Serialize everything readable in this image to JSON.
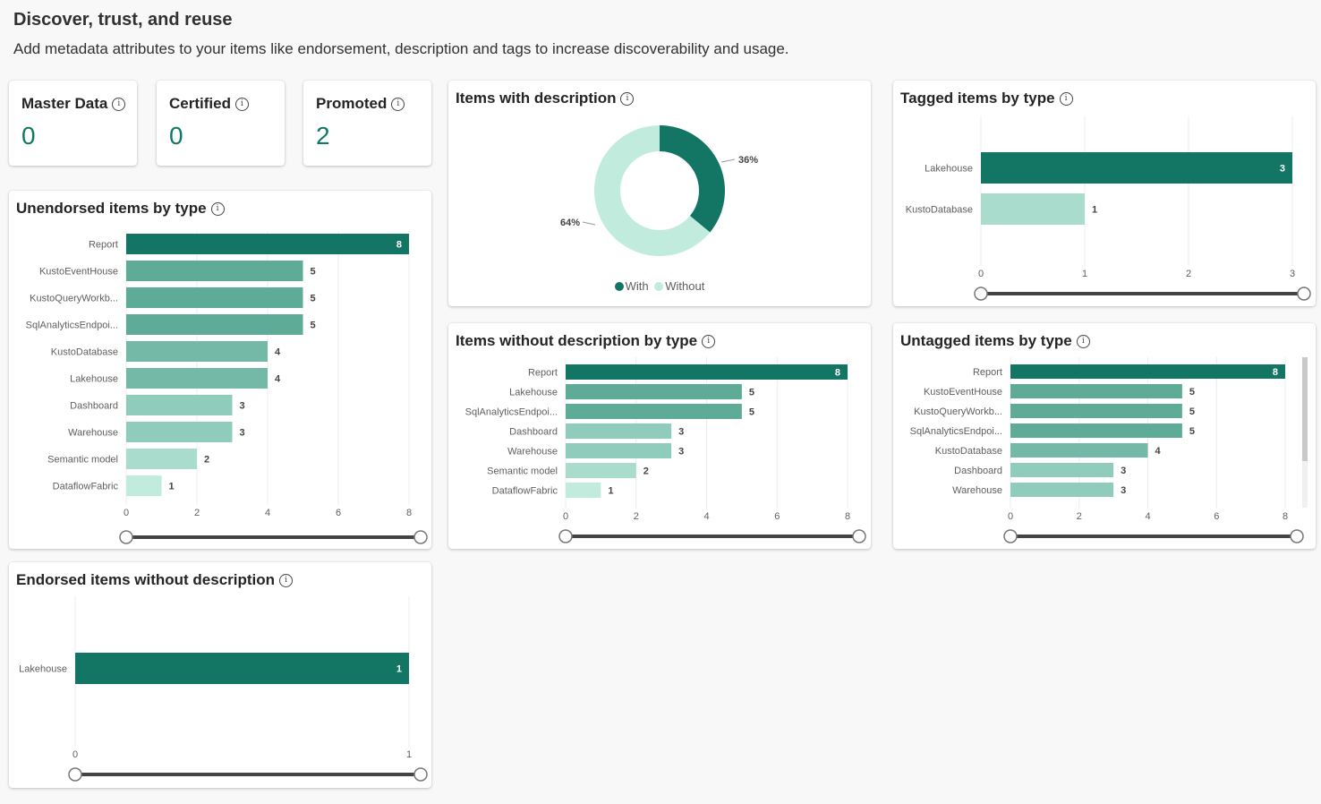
{
  "header": {
    "title": "Discover, trust, and reuse",
    "subtitle": "Add metadata attributes to your items like endorsement, description and tags to increase discoverability and usage."
  },
  "kpis": [
    {
      "label": "Master Data",
      "value": "0"
    },
    {
      "label": "Certified",
      "value": "0"
    },
    {
      "label": "Promoted",
      "value": "2"
    }
  ],
  "colors": {
    "dark": "#137665",
    "mid": "#5eab98",
    "mid2": "#74b9a8",
    "light": "#8fccbb",
    "lighter": "#a9dccd",
    "lightest": "#c1ebdd"
  },
  "chart_data": [
    {
      "id": "unendorsed",
      "type": "bar",
      "title": "Unendorsed items by type",
      "categories": [
        "Report",
        "KustoEventHouse",
        "KustoQueryWorkb...",
        "SqlAnalyticsEndpoi...",
        "KustoDatabase",
        "Lakehouse",
        "Dashboard",
        "Warehouse",
        "Semantic model",
        "DataflowFabric"
      ],
      "values": [
        8,
        5,
        5,
        5,
        4,
        4,
        3,
        3,
        2,
        1
      ],
      "xticks": [
        "0",
        "2",
        "4",
        "6",
        "8"
      ],
      "xlim": [
        0,
        8
      ],
      "grid": true
    },
    {
      "id": "with_description",
      "type": "pie",
      "title": "Items with description",
      "labels": [
        "With",
        "Without"
      ],
      "values": [
        36,
        64
      ],
      "value_labels": [
        "36%",
        "64%"
      ],
      "legend": "bottom"
    },
    {
      "id": "tagged",
      "type": "bar",
      "title": "Tagged items by type",
      "categories": [
        "Lakehouse",
        "KustoDatabase"
      ],
      "values": [
        3,
        1
      ],
      "xticks": [
        "0",
        "1",
        "2",
        "3"
      ],
      "xlim": [
        0,
        3
      ],
      "grid": true
    },
    {
      "id": "without_description",
      "type": "bar",
      "title": "Items without description by type",
      "categories": [
        "Report",
        "Lakehouse",
        "SqlAnalyticsEndpoi...",
        "Dashboard",
        "Warehouse",
        "Semantic model",
        "DataflowFabric"
      ],
      "values": [
        8,
        5,
        5,
        3,
        3,
        2,
        1
      ],
      "xticks": [
        "0",
        "2",
        "4",
        "6",
        "8"
      ],
      "xlim": [
        0,
        8
      ],
      "grid": true
    },
    {
      "id": "untagged",
      "type": "bar",
      "title": "Untagged items by type",
      "categories": [
        "Report",
        "KustoEventHouse",
        "KustoQueryWorkb...",
        "SqlAnalyticsEndpoi...",
        "KustoDatabase",
        "Dashboard",
        "Warehouse"
      ],
      "values": [
        8,
        5,
        5,
        5,
        4,
        3,
        3
      ],
      "xticks": [
        "0",
        "2",
        "4",
        "6",
        "8"
      ],
      "xlim": [
        0,
        8
      ],
      "grid": true
    },
    {
      "id": "endorsed_without_description",
      "type": "bar",
      "title": "Endorsed items without description",
      "categories": [
        "Lakehouse"
      ],
      "values": [
        1
      ],
      "xticks": [
        "0",
        "1"
      ],
      "xlim": [
        0,
        1
      ],
      "grid": true
    }
  ]
}
